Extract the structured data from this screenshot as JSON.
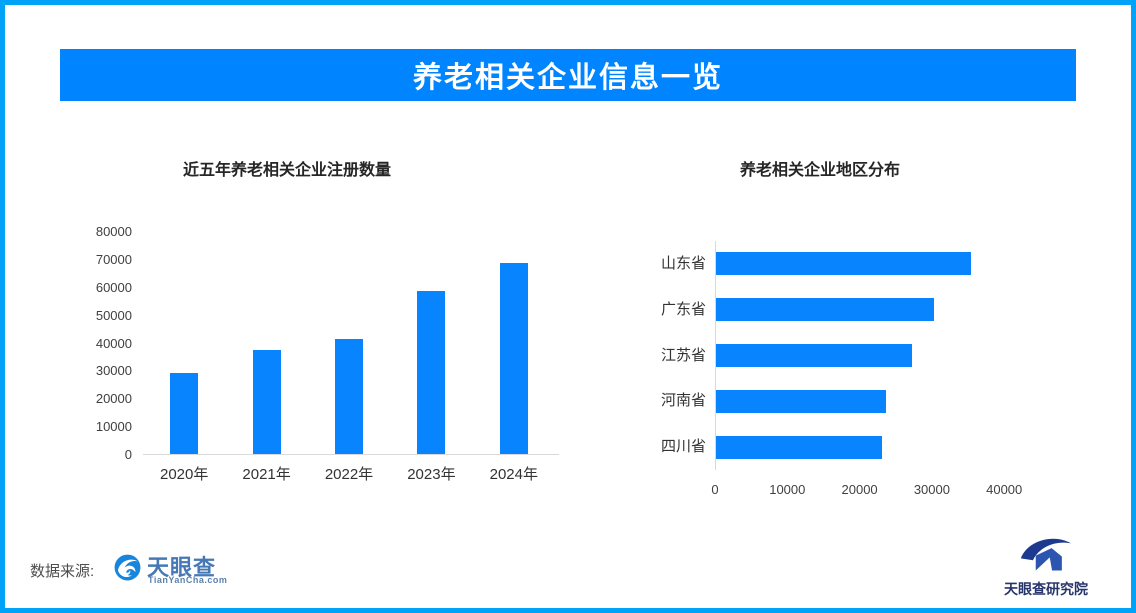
{
  "header": {
    "title": "养老相关企业信息一览",
    "bg_color": "#0084ff",
    "text_color": "#ffffff"
  },
  "frame": {
    "border_color": "#00a3f8",
    "background_color": "#ffffff"
  },
  "chart_data": [
    {
      "type": "bar",
      "orientation": "vertical",
      "title": "近五年养老相关企业注册数量",
      "categories": [
        "2020年",
        "2021年",
        "2022年",
        "2023年",
        "2024年"
      ],
      "values": [
        29400,
        37600,
        41500,
        58700,
        68900
      ],
      "xlabel": "",
      "ylabel": "",
      "ylim": [
        0,
        80000
      ],
      "yticks": [
        0,
        10000,
        20000,
        30000,
        40000,
        50000,
        60000,
        70000,
        80000
      ],
      "grid": false,
      "legend": "none",
      "bar_color": "#0984ff",
      "axis_line_color": "#d9d9d9"
    },
    {
      "type": "bar",
      "orientation": "horizontal",
      "title": "养老相关企业地区分布",
      "categories": [
        "山东省",
        "广东省",
        "江苏省",
        "河南省",
        "四川省"
      ],
      "values": [
        35300,
        30200,
        27100,
        23500,
        22900
      ],
      "xlabel": "",
      "ylabel": "",
      "xlim": [
        0,
        45000
      ],
      "xticks": [
        0,
        10000,
        20000,
        30000,
        40000
      ],
      "grid": false,
      "legend": "none",
      "bar_color": "#0984ff",
      "axis_line_color": "#d9d9d9"
    }
  ],
  "footer": {
    "source_label": "数据来源:",
    "tianyancha_logo": {
      "icon": "eye-swirl-logo",
      "name": "天眼查",
      "subtext": "TianYanCha.com"
    },
    "research_logo": {
      "icon": "arc-house-logo",
      "name": "天眼查研究院"
    }
  }
}
